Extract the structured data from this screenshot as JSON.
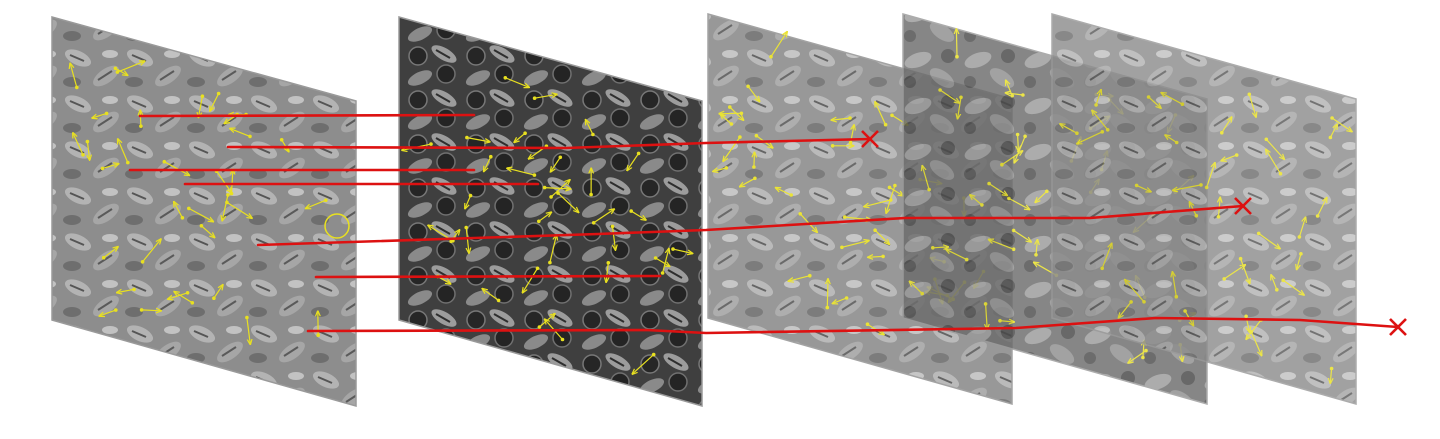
{
  "figure": {
    "description_labels": [],
    "frames": [
      {
        "id": "frame-1",
        "tone": "light",
        "arrow_count": 34
      },
      {
        "id": "frame-2",
        "tone": "dark",
        "arrow_count": 34
      },
      {
        "id": "frame-3",
        "tone": "light",
        "arrow_count": 36
      },
      {
        "id": "frame-4",
        "tone": "medium",
        "arrow_count": 36
      },
      {
        "id": "frame-5",
        "tone": "light",
        "arrow_count": 36
      }
    ],
    "tracks": [
      {
        "id": "track-1",
        "frames_spanned": [
          1,
          2
        ],
        "terminates": false
      },
      {
        "id": "track-2",
        "frames_spanned": [
          1,
          2,
          3
        ],
        "terminates": true,
        "end_marker": "x"
      },
      {
        "id": "track-3",
        "frames_spanned": [
          1,
          2
        ],
        "terminates": false
      },
      {
        "id": "track-4",
        "frames_spanned": [
          1,
          2
        ],
        "terminates": false
      },
      {
        "id": "track-5",
        "frames_spanned": [
          1,
          2,
          3,
          4,
          5
        ],
        "terminates": true,
        "end_marker": "x"
      },
      {
        "id": "track-6",
        "frames_spanned": [
          1,
          2
        ],
        "terminates": false
      },
      {
        "id": "track-7",
        "frames_spanned": [
          1,
          2,
          3,
          4,
          5
        ],
        "terminates": true,
        "end_marker": "x"
      }
    ],
    "colors": {
      "track_line": "#dd1111",
      "end_marker": "#dd1111",
      "orientation_arrow": "#e8e020",
      "highlight_circle": "#e8e020"
    }
  }
}
